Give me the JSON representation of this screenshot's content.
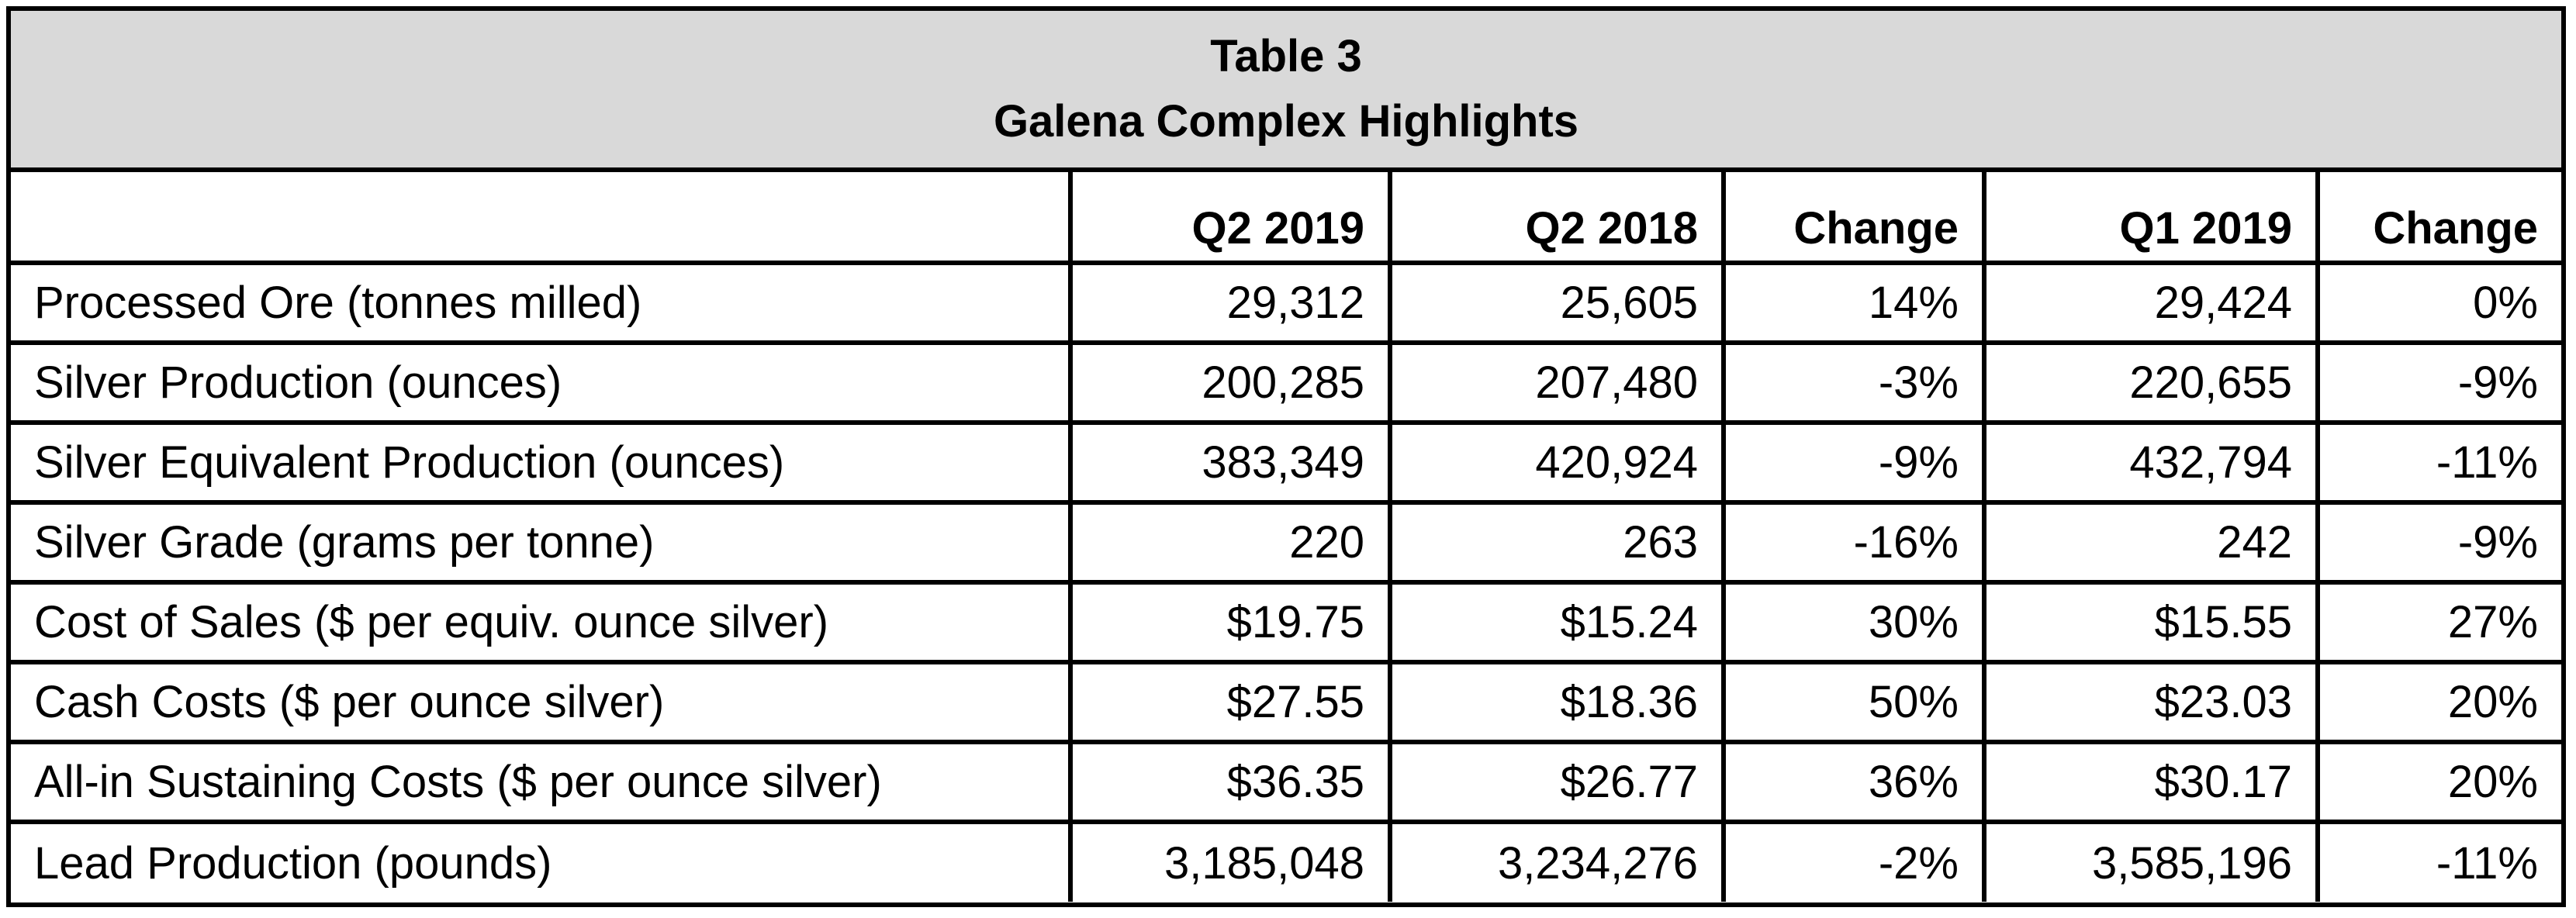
{
  "table": {
    "title_line1": "Table 3",
    "title_line2": "Galena Complex Highlights",
    "headers": [
      "",
      "Q2 2019",
      "Q2 2018",
      "Change",
      "Q1 2019",
      "Change"
    ],
    "rows": [
      [
        "Processed Ore (tonnes milled)",
        "29,312",
        "25,605",
        "14%",
        "29,424",
        "0%"
      ],
      [
        "Silver Production (ounces)",
        "200,285",
        "207,480",
        "-3%",
        "220,655",
        "-9%"
      ],
      [
        "Silver Equivalent Production (ounces)",
        "383,349",
        "420,924",
        "-9%",
        "432,794",
        "-11%"
      ],
      [
        "Silver Grade (grams per tonne)",
        "220",
        "263",
        "-16%",
        "242",
        "-9%"
      ],
      [
        "Cost of Sales ($ per equiv. ounce silver)",
        "$19.75",
        "$15.24",
        "30%",
        "$15.55",
        "27%"
      ],
      [
        "Cash Costs ($ per ounce silver)",
        "$27.55",
        "$18.36",
        "50%",
        "$23.03",
        "20%"
      ],
      [
        "All-in Sustaining Costs ($ per ounce silver)",
        "$36.35",
        "$26.77",
        "36%",
        "$30.17",
        "20%"
      ],
      [
        "Lead Production (pounds)",
        "3,185,048",
        "3,234,276",
        "-2%",
        "3,585,196",
        "-11%"
      ]
    ]
  }
}
